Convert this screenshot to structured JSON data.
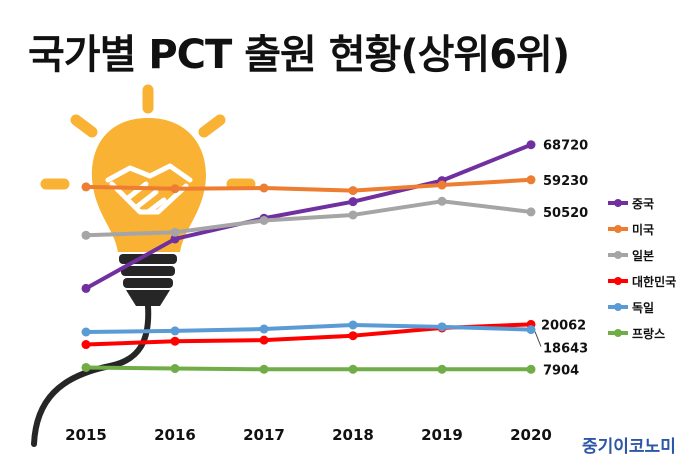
{
  "title": "국가별 PCT 출원 현황(상위6위)",
  "source": "중기이코노미",
  "chart_data": {
    "type": "line",
    "title": "국가별 PCT 출원 현황(상위6위)",
    "categories": [
      "2015",
      "2016",
      "2017",
      "2018",
      "2019",
      "2020"
    ],
    "legend_position": "right",
    "grid": false,
    "ylim": [
      5000,
      70000
    ],
    "series": [
      {
        "name": "중국",
        "color": "#7030a0",
        "values": [
          29800,
          43200,
          48800,
          53300,
          59000,
          68720
        ],
        "end_label": "68720"
      },
      {
        "name": "미국",
        "color": "#ed7d31",
        "values": [
          57300,
          56800,
          57000,
          56300,
          57800,
          59230
        ],
        "end_label": "59230"
      },
      {
        "name": "일본",
        "color": "#a5a5a5",
        "values": [
          44200,
          45000,
          48200,
          49700,
          53400,
          50520
        ],
        "end_label": "50520"
      },
      {
        "name": "대한민국",
        "color": "#ff0000",
        "values": [
          14600,
          15500,
          15800,
          17000,
          19100,
          20062
        ],
        "end_label": "20062"
      },
      {
        "name": "독일",
        "color": "#5b9bd5",
        "values": [
          18000,
          18300,
          18800,
          19900,
          19400,
          18643
        ],
        "end_label": "18643"
      },
      {
        "name": "프랑스",
        "color": "#70ad47",
        "values": [
          8400,
          8100,
          7900,
          7900,
          7900,
          7904
        ],
        "end_label": "7904"
      }
    ]
  }
}
